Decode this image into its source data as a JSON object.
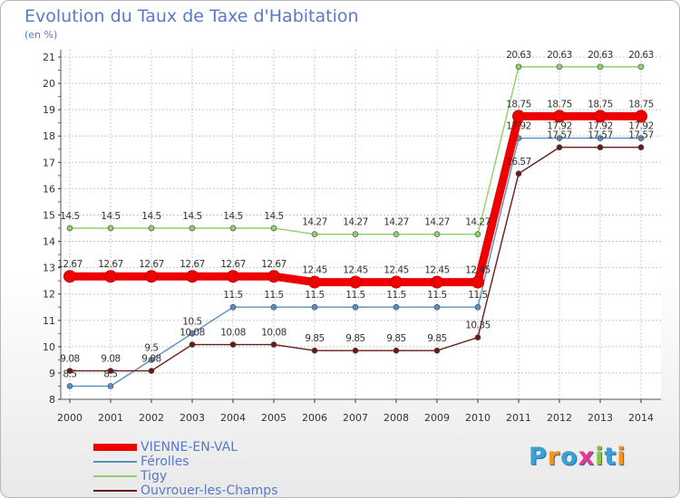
{
  "header": {
    "title": "Evolution du Taux de Taxe d'Habitation",
    "unit": "(en %)"
  },
  "brand": {
    "logo_text": "Proxiti",
    "logo_colors": [
      "#3aa0d6",
      "#f7941d",
      "#3aa0d6",
      "#e8388b",
      "#8cc63f",
      "#3aa0d6",
      "#f7941d"
    ]
  },
  "chart_data": {
    "type": "line",
    "x": [
      "2000",
      "2001",
      "2002",
      "2003",
      "2004",
      "2005",
      "2006",
      "2007",
      "2008",
      "2009",
      "2010",
      "2011",
      "2012",
      "2013",
      "2014"
    ],
    "ylim": [
      8,
      21
    ],
    "yticks": [
      "8",
      "9",
      "10",
      "11",
      "12",
      "13",
      "14",
      "15",
      "16",
      "17",
      "18",
      "19",
      "20",
      "21"
    ],
    "grid": true,
    "legend_position": "bottom-left",
    "series": [
      {
        "name": "VIENNE-EN-VAL",
        "color": "#ee0000",
        "values": [
          12.67,
          12.67,
          12.67,
          12.67,
          12.67,
          12.67,
          12.45,
          12.45,
          12.45,
          12.45,
          12.45,
          18.75,
          18.75,
          18.75,
          18.75
        ],
        "labels": [
          "12.67",
          "12.67",
          "12.67",
          "12.67",
          "12.67",
          "12.67",
          "12.45",
          "12.45",
          "12.45",
          "12.45",
          "12.45",
          "18.75",
          "18.75",
          "18.75",
          "18.75"
        ]
      },
      {
        "name": "Férolles",
        "color": "#5a8fc2",
        "values": [
          8.5,
          8.5,
          9.5,
          10.5,
          11.5,
          11.5,
          11.5,
          11.5,
          11.5,
          11.5,
          11.5,
          17.92,
          17.92,
          17.92,
          17.92
        ],
        "labels": [
          "8.5",
          "8.5",
          "9.5",
          "10.5",
          "11.5",
          "11.5",
          "11.5",
          "11.5",
          "11.5",
          "11.5",
          "11.5",
          "17.92",
          "17.92",
          "17.92",
          "17.92"
        ]
      },
      {
        "name": "Tigy",
        "color": "#8fd16a",
        "values": [
          14.5,
          14.5,
          14.5,
          14.5,
          14.5,
          14.5,
          14.27,
          14.27,
          14.27,
          14.27,
          14.27,
          20.63,
          20.63,
          20.63,
          20.63
        ],
        "labels": [
          "14.5",
          "14.5",
          "14.5",
          "14.5",
          "14.5",
          "14.5",
          "14.27",
          "14.27",
          "14.27",
          "14.27",
          "14.27",
          "20.63",
          "20.63",
          "20.63",
          "20.63"
        ]
      },
      {
        "name": "Ouvrouer-les-Champs",
        "color": "#6b1a1a",
        "values": [
          9.08,
          9.08,
          9.08,
          10.08,
          10.08,
          10.08,
          9.85,
          9.85,
          9.85,
          9.85,
          10.35,
          16.57,
          17.57,
          17.57,
          17.57
        ],
        "labels": [
          "9.08",
          "9.08",
          "9.08",
          "10.08",
          "10.08",
          "10.08",
          "9.85",
          "9.85",
          "9.85",
          "9.85",
          "10.35",
          "16.57",
          "17.57",
          "17.57",
          "17.57"
        ]
      }
    ]
  }
}
